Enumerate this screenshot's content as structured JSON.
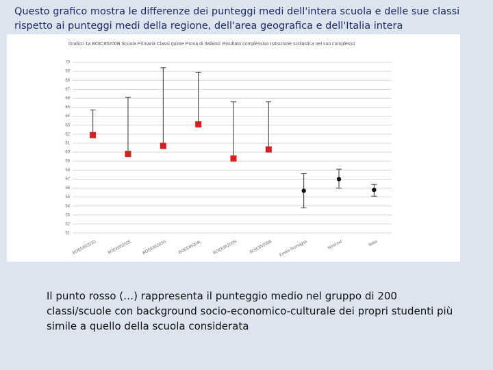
{
  "header": {
    "title": "Questo grafico mostra le differenze dei punteggi medi dell'intera scuola e delle sue classi rispetto ai punteggi medi della regione, dell'area geografica e dell'Italia intera"
  },
  "chart_data": {
    "type": "errorbar",
    "title": "Grafico 1a   BOIC85200B   Scuola Primaria   Classi quinte   Prova di Italiano: Risultato complessivo   Istituzione scolastica nel suo complesso",
    "categories": [
      "BOEE85201D",
      "BOEE85202E",
      "BOEE85203G",
      "BOEE85204L",
      "BOEE85205N",
      "BOIC85200B",
      "Emilia-Romagna",
      "Nord est",
      "Italia"
    ],
    "series": [
      {
        "color": "#d42020",
        "marker": "square",
        "values": [
          61.9,
          59.8,
          60.7,
          63.1,
          59.3,
          60.3,
          null,
          null,
          null
        ],
        "upper": [
          64.7,
          66.1,
          69.4,
          68.9,
          65.6,
          65.6,
          null,
          null,
          null
        ],
        "lower": [
          null,
          null,
          null,
          null,
          null,
          null,
          null,
          null,
          null
        ]
      },
      {
        "color": "#111111",
        "marker": "circle",
        "values": [
          null,
          null,
          null,
          null,
          null,
          null,
          55.7,
          57.0,
          55.8
        ],
        "upper": [
          null,
          null,
          null,
          null,
          null,
          null,
          57.6,
          58.1,
          56.4
        ],
        "lower": [
          null,
          null,
          null,
          null,
          null,
          null,
          53.8,
          56.0,
          55.1
        ]
      }
    ],
    "ylim": [
      51,
      70
    ],
    "yticks": [
      51,
      52,
      53,
      54,
      55,
      56,
      57,
      58,
      59,
      60,
      61,
      62,
      63,
      64,
      65,
      66,
      67,
      68,
      69,
      70
    ],
    "grid": true
  }
}
